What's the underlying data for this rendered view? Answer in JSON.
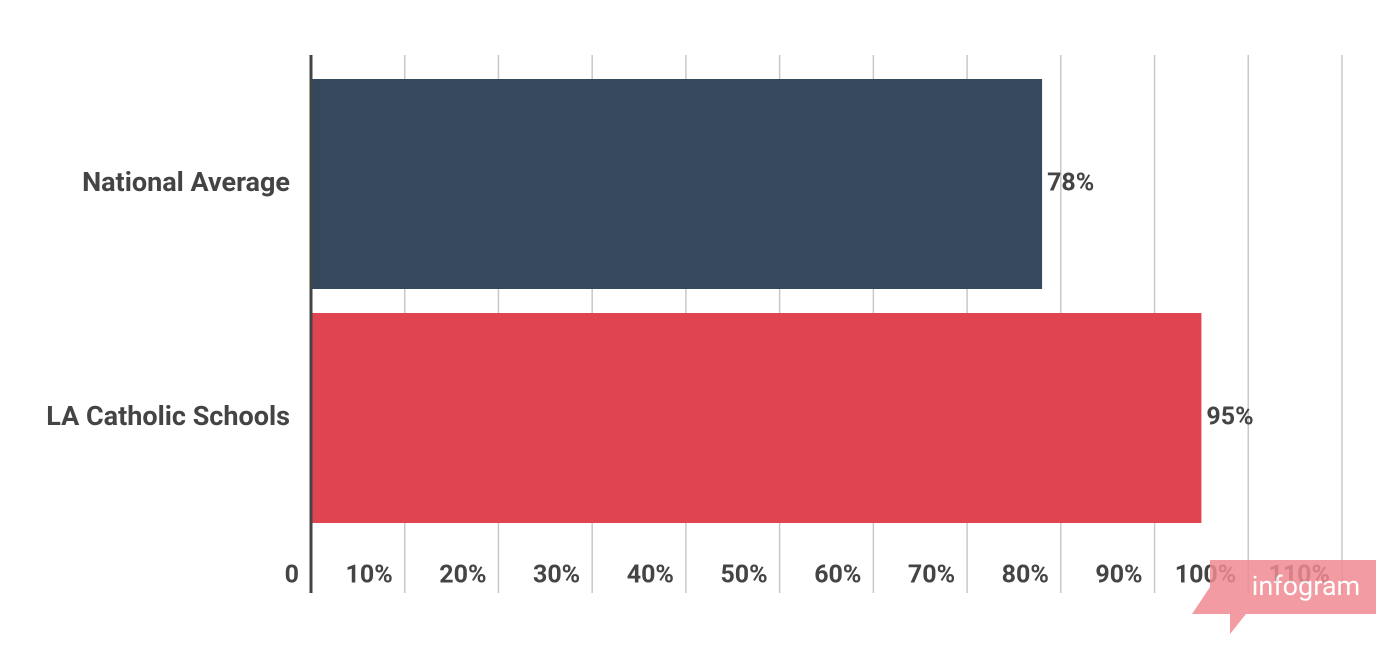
{
  "chart_data": {
    "type": "bar",
    "orientation": "horizontal",
    "categories": [
      "National Average",
      "LA Catholic Schools"
    ],
    "values": [
      78,
      95
    ],
    "value_labels": [
      "78%",
      "95%"
    ],
    "colors": [
      "#36495c",
      "#e04451"
    ],
    "xlim": [
      0,
      110
    ],
    "xticks": [
      0,
      {
        "value": 10,
        "label": "10%"
      },
      {
        "value": 20,
        "label": "20%"
      },
      {
        "value": 30,
        "label": "30%"
      },
      {
        "value": 40,
        "label": "40%"
      },
      {
        "value": 50,
        "label": "50%"
      },
      {
        "value": 60,
        "label": "60%"
      },
      {
        "value": 70,
        "label": "70%"
      },
      {
        "value": 80,
        "label": "80%"
      },
      {
        "value": 90,
        "label": "90%"
      },
      {
        "value": 100,
        "label": "100%"
      },
      {
        "value": 110,
        "label": "110%"
      }
    ],
    "grid": true,
    "watermark": "infogram"
  }
}
